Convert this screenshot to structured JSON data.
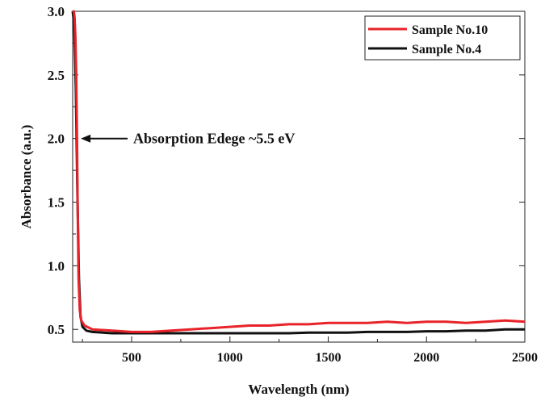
{
  "chart_data": {
    "type": "line",
    "title": "",
    "xlabel": "Wavelength (nm)",
    "ylabel": "Absorbance (a.u.)",
    "xlim": [
      200,
      2500
    ],
    "ylim": [
      0.4,
      3.0
    ],
    "x_ticks": [
      "500",
      "1000",
      "1500",
      "2000",
      "2500"
    ],
    "x_tick_values": [
      500,
      1000,
      1500,
      2000,
      2500
    ],
    "y_ticks": [
      "0.5",
      "1.0",
      "1.5",
      "2.0",
      "2.5",
      "3.0"
    ],
    "y_tick_values": [
      0.5,
      1.0,
      1.5,
      2.0,
      2.5,
      3.0
    ],
    "legend_position": "top-right",
    "annotation": {
      "text": "Absorption Edege ~5.5 eV",
      "x": 225,
      "y": 2.0
    },
    "series": [
      {
        "name": "Sample No.10",
        "color": "#e8232a",
        "x": [
          200,
          206,
          210,
          214,
          218,
          222,
          226,
          230,
          236,
          244,
          260,
          300,
          400,
          500,
          600,
          700,
          800,
          900,
          1000,
          1100,
          1200,
          1300,
          1400,
          1500,
          1600,
          1700,
          1800,
          1900,
          2000,
          2100,
          2200,
          2300,
          2400,
          2500
        ],
        "y": [
          3.0,
          3.0,
          2.95,
          2.8,
          2.5,
          2.0,
          1.4,
          0.9,
          0.65,
          0.57,
          0.53,
          0.5,
          0.49,
          0.48,
          0.48,
          0.49,
          0.5,
          0.51,
          0.52,
          0.53,
          0.53,
          0.54,
          0.54,
          0.55,
          0.55,
          0.55,
          0.56,
          0.55,
          0.56,
          0.56,
          0.55,
          0.56,
          0.57,
          0.56
        ]
      },
      {
        "name": "Sample No.4",
        "color": "#111111",
        "x": [
          200,
          208,
          216,
          224,
          232,
          240,
          250,
          270,
          300,
          400,
          500,
          600,
          700,
          800,
          900,
          1000,
          1100,
          1200,
          1300,
          1400,
          1500,
          1600,
          1700,
          1800,
          1900,
          2000,
          2100,
          2200,
          2300,
          2400,
          2500
        ],
        "y": [
          3.0,
          2.9,
          2.4,
          1.6,
          0.9,
          0.6,
          0.52,
          0.49,
          0.48,
          0.47,
          0.47,
          0.47,
          0.47,
          0.47,
          0.47,
          0.47,
          0.47,
          0.47,
          0.47,
          0.475,
          0.475,
          0.475,
          0.48,
          0.48,
          0.48,
          0.485,
          0.485,
          0.49,
          0.49,
          0.5,
          0.5
        ]
      }
    ]
  }
}
